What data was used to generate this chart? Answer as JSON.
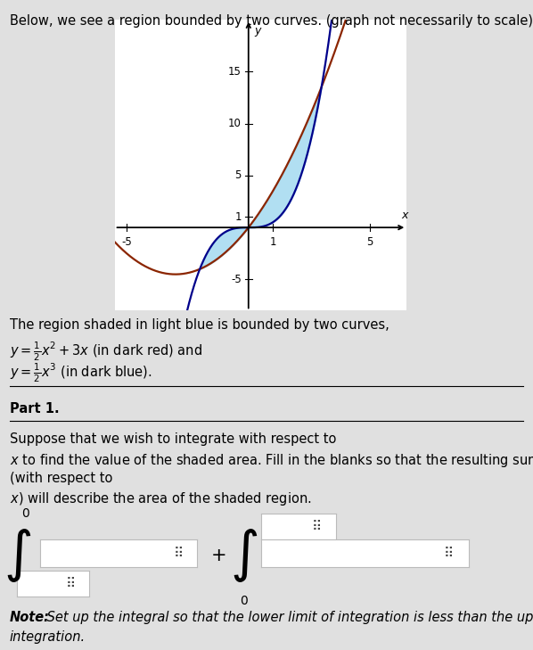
{
  "title_text": "Below, we see a region bounded by two curves. (graph not necessarily to scale)",
  "graph_xlim": [
    -5.5,
    6.5
  ],
  "graph_ylim": [
    -8,
    20
  ],
  "x_tick_labels": [
    "-5",
    "1",
    "5"
  ],
  "x_tick_positions": [
    -5,
    1,
    5
  ],
  "y_tick_labels": [
    "-5",
    "1",
    "5",
    "10",
    "15"
  ],
  "y_tick_positions": [
    -5,
    1,
    5,
    10,
    15
  ],
  "curve1_color": "#8B2500",
  "curve2_color": "#00008B",
  "shade_color": "#87CEEB",
  "shade_alpha": 0.65,
  "bg_color": "#E0E0E0",
  "plot_bg_color": "#FFFFFF",
  "box_border_color": "#BBBBBB",
  "font_size_title": 10.5,
  "font_size_body": 10.5,
  "font_size_tick": 8.5
}
